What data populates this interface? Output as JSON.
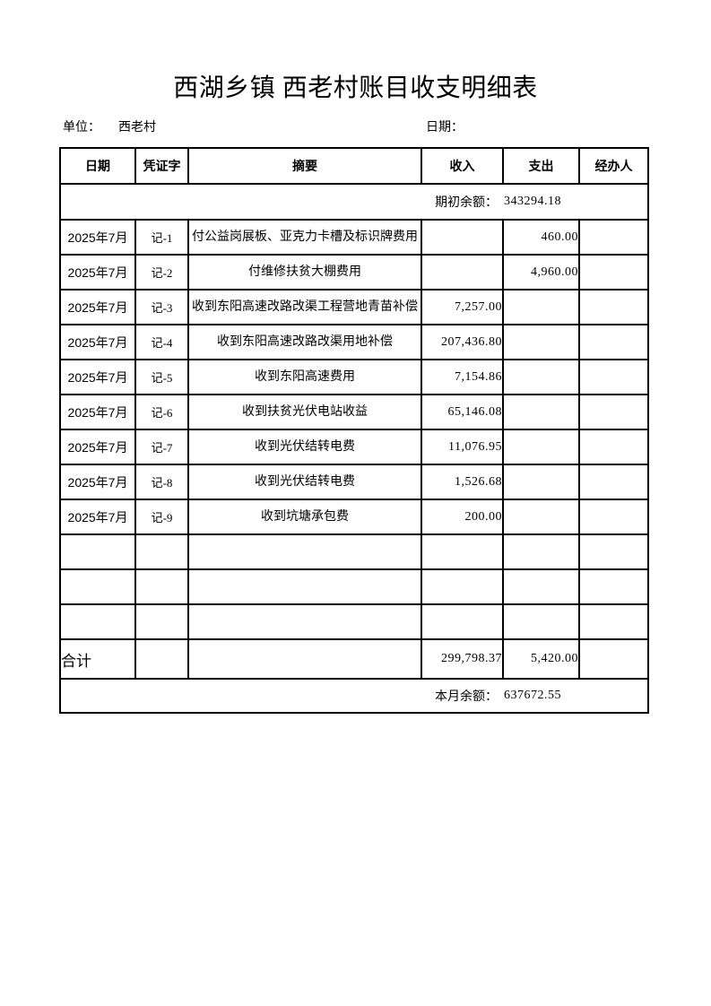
{
  "page": {
    "title": "西湖乡镇 西老村账目收支明细表",
    "unit_label": "单位：",
    "unit_value": "西老村",
    "date_label": "日期："
  },
  "table": {
    "headers": [
      "日期",
      "凭证字",
      "摘要",
      "收入",
      "支出",
      "经办人"
    ],
    "opening_balance": {
      "label": "期初余额：",
      "value": "343294.18"
    },
    "rows": [
      {
        "date": "2025年7月",
        "voucher": "记-1",
        "summary": "付公益岗展板、亚克力卡槽及标识牌费用",
        "income": "",
        "expense": "460.00",
        "handler": ""
      },
      {
        "date": "2025年7月",
        "voucher": "记-2",
        "summary": "付维修扶贫大棚费用",
        "income": "",
        "expense": "4,960.00",
        "handler": ""
      },
      {
        "date": "2025年7月",
        "voucher": "记-3",
        "summary": "收到东阳高速改路改渠工程营地青苗补偿",
        "income": "7,257.00",
        "expense": "",
        "handler": ""
      },
      {
        "date": "2025年7月",
        "voucher": "记-4",
        "summary": "收到东阳高速改路改渠用地补偿",
        "income": "207,436.80",
        "expense": "",
        "handler": ""
      },
      {
        "date": "2025年7月",
        "voucher": "记-5",
        "summary": "收到东阳高速费用",
        "income": "7,154.86",
        "expense": "",
        "handler": ""
      },
      {
        "date": "2025年7月",
        "voucher": "记-6",
        "summary": "收到扶贫光伏电站收益",
        "income": "65,146.08",
        "expense": "",
        "handler": ""
      },
      {
        "date": "2025年7月",
        "voucher": "记-7",
        "summary": "收到光伏结转电费",
        "income": "11,076.95",
        "expense": "",
        "handler": ""
      },
      {
        "date": "2025年7月",
        "voucher": "记-8",
        "summary": "收到光伏结转电费",
        "income": "1,526.68",
        "expense": "",
        "handler": ""
      },
      {
        "date": "2025年7月",
        "voucher": "记-9",
        "summary": "收到坑塘承包费",
        "income": "200.00",
        "expense": "",
        "handler": ""
      }
    ],
    "empty_row_count": 3,
    "total_row": {
      "label": "合计",
      "income": "299,798.37",
      "expense": "5,420.00"
    },
    "closing_balance": {
      "label": "本月余额：",
      "value": "637672.55"
    }
  }
}
